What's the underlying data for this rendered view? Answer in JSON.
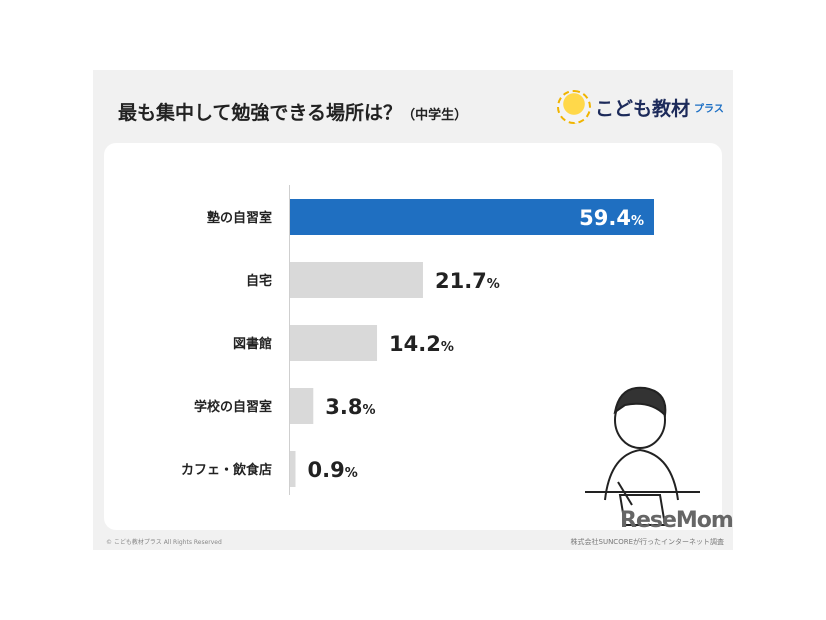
{
  "title": "最も集中して勉強できる場所は？",
  "subtitle": "（中学生）",
  "logo": {
    "text": "こども教材",
    "suffix": "プラス"
  },
  "chart_data": {
    "type": "bar",
    "orientation": "horizontal",
    "categories": [
      "塾の自習室",
      "自宅",
      "図書館",
      "学校の自習室",
      "カフェ・飲食店"
    ],
    "values": [
      59.4,
      21.7,
      14.2,
      3.8,
      0.9
    ],
    "unit": "%",
    "colors": {
      "highlight": "#1f6fc1",
      "default": "#d9d9d9"
    },
    "grid": false
  },
  "footer": {
    "copyright": "© こども教材プラス All Rights Reserved",
    "source": "株式会社SUNCOREが行ったインターネット調査",
    "watermark": "ReseMom"
  }
}
